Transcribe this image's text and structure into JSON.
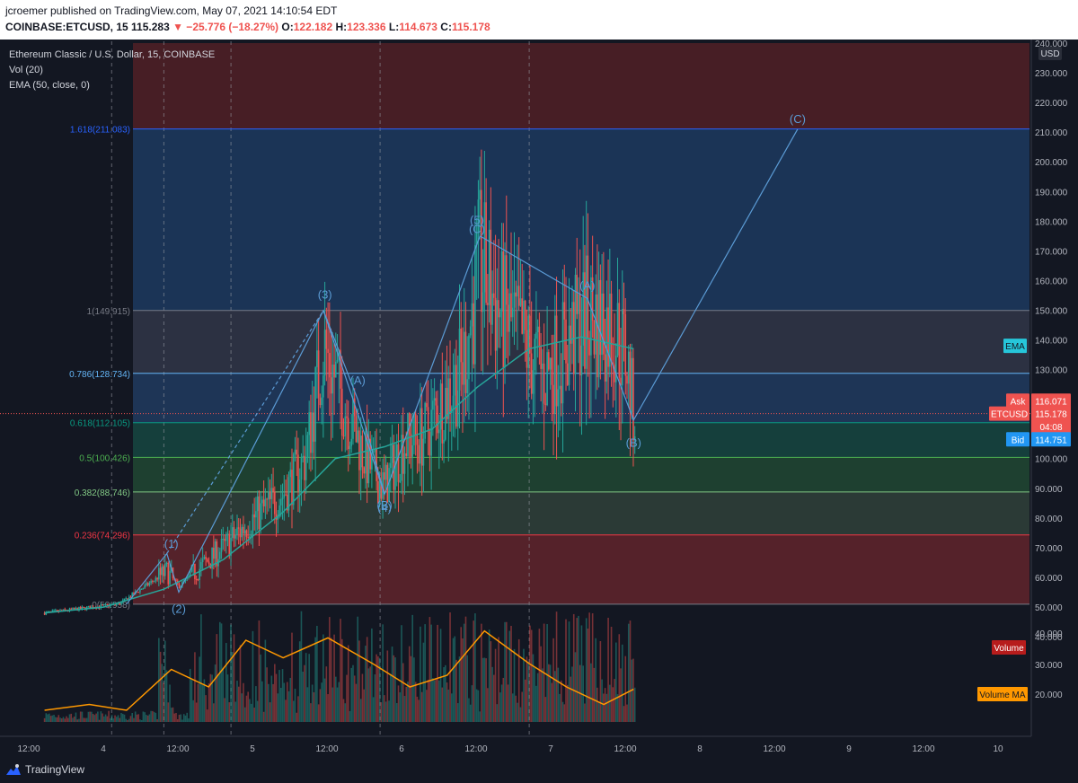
{
  "header": {
    "line1": "jcroemer published on TradingView.com, May 07, 2021 14:10:54 EDT",
    "symbol": "COINBASE:ETCUSD, 15",
    "price": "115.283",
    "change": "▼ −25.776 (−18.27%)",
    "o_label": "O:",
    "o": "122.182",
    "h_label": "H:",
    "h": "123.336",
    "l_label": "L:",
    "l": "114.673",
    "c_label": "C:",
    "c": "115.178"
  },
  "legend": {
    "title": "Ethereum Classic / U.S. Dollar, 15, COINBASE",
    "vol": "Vol (20)",
    "ema": "EMA (50, close, 0)"
  },
  "colors": {
    "background": "#131722",
    "up": "#26a69a",
    "down": "#ef5350",
    "ema": "#26a69a",
    "wave": "#5b9bd5",
    "volume_ma": "#ff9800"
  },
  "chart_data": {
    "type": "candlestick",
    "x_ticks": [
      "12:00",
      "4",
      "12:00",
      "5",
      "12:00",
      "6",
      "12:00",
      "7",
      "12:00",
      "8",
      "12:00",
      "9",
      "12:00",
      "10"
    ],
    "y_unit": "USD",
    "y_ticks": [
      "40.000",
      "50.000",
      "60.000",
      "70.000",
      "80.000",
      "90.000",
      "100.000",
      "110.000",
      "120.000",
      "130.000",
      "140.000",
      "150.000",
      "160.000",
      "170.000",
      "180.000",
      "190.000",
      "200.000",
      "210.000",
      "220.000",
      "230.000",
      "240.000"
    ],
    "y_range": [
      35,
      240
    ],
    "fib_levels": [
      {
        "ratio": 0,
        "price": 50.958,
        "label": "0(50.958)",
        "color": "#787b86"
      },
      {
        "ratio": 0.236,
        "price": 74.296,
        "label": "0.236(74.296)",
        "color": "#f23645"
      },
      {
        "ratio": 0.382,
        "price": 88.746,
        "label": "0.382(88.746)",
        "color": "#81c784"
      },
      {
        "ratio": 0.5,
        "price": 100.426,
        "label": "0.5(100.426)",
        "color": "#4caf50"
      },
      {
        "ratio": 0.618,
        "price": 112.105,
        "label": "0.618(112.105)",
        "color": "#089981"
      },
      {
        "ratio": 0.786,
        "price": 128.734,
        "label": "0.786(128.734)",
        "color": "#64b5f6"
      },
      {
        "ratio": 1,
        "price": 149.915,
        "label": "1(149.915)",
        "color": "#787b86"
      },
      {
        "ratio": 1.618,
        "price": 211.083,
        "label": "1.618(211.083)",
        "color": "#2962ff"
      }
    ],
    "wave_labels": [
      {
        "label": "(1)",
        "x": 3.45,
        "y": 70
      },
      {
        "label": "(2)",
        "x": 3.5,
        "y": 48
      },
      {
        "label": "(3)",
        "x": 4.48,
        "y": 154
      },
      {
        "label": "(A)",
        "x": 4.7,
        "y": 125
      },
      {
        "label": "(B)",
        "x": 4.88,
        "y": 83
      },
      {
        "label": "(4)",
        "x": 4.88,
        "y": 82
      },
      {
        "label": "(5)",
        "x": 5.5,
        "y": 179
      },
      {
        "label": "(C)",
        "x": 5.5,
        "y": 176
      },
      {
        "label": "(A)",
        "x": 6.24,
        "y": 157
      },
      {
        "label": "(B)",
        "x": 6.55,
        "y": 104
      },
      {
        "label": "(C)",
        "x": 7.65,
        "y": 213
      }
    ],
    "wave_path": [
      {
        "x": 3.15,
        "y": 51
      },
      {
        "x": 3.42,
        "y": 68
      },
      {
        "x": 3.5,
        "y": 55
      },
      {
        "x": 4.47,
        "y": 149.9
      },
      {
        "x": 4.88,
        "y": 88
      },
      {
        "x": 5.52,
        "y": 175
      }
    ],
    "abc_path": [
      {
        "x": 4.47,
        "y": 149.9
      },
      {
        "x": 4.7,
        "y": 120
      },
      {
        "x": 4.88,
        "y": 88
      }
    ],
    "corrective_path": [
      {
        "x": 5.52,
        "y": 175
      },
      {
        "x": 6.24,
        "y": 154
      },
      {
        "x": 6.55,
        "y": 113
      },
      {
        "x": 7.65,
        "y": 211
      }
    ],
    "dashed_projection": [
      {
        "x": 3.42,
        "y": 68
      },
      {
        "x": 4.47,
        "y": 149.9
      }
    ],
    "ema_series": [
      {
        "x": 2.6,
        "y": 48
      },
      {
        "x": 3.0,
        "y": 50
      },
      {
        "x": 3.4,
        "y": 56
      },
      {
        "x": 3.8,
        "y": 66
      },
      {
        "x": 4.2,
        "y": 82
      },
      {
        "x": 4.55,
        "y": 100
      },
      {
        "x": 4.88,
        "y": 104
      },
      {
        "x": 5.2,
        "y": 110
      },
      {
        "x": 5.5,
        "y": 124
      },
      {
        "x": 5.85,
        "y": 137
      },
      {
        "x": 6.2,
        "y": 141
      },
      {
        "x": 6.55,
        "y": 137
      }
    ],
    "volume_ma_series": [
      {
        "x": 2.6,
        "y": 0.1
      },
      {
        "x": 2.9,
        "y": 0.15
      },
      {
        "x": 3.15,
        "y": 0.1
      },
      {
        "x": 3.45,
        "y": 0.45
      },
      {
        "x": 3.7,
        "y": 0.3
      },
      {
        "x": 3.95,
        "y": 0.7
      },
      {
        "x": 4.2,
        "y": 0.55
      },
      {
        "x": 4.5,
        "y": 0.72
      },
      {
        "x": 4.8,
        "y": 0.5
      },
      {
        "x": 5.05,
        "y": 0.3
      },
      {
        "x": 5.3,
        "y": 0.4
      },
      {
        "x": 5.55,
        "y": 0.78
      },
      {
        "x": 5.85,
        "y": 0.5
      },
      {
        "x": 6.1,
        "y": 0.3
      },
      {
        "x": 6.35,
        "y": 0.15
      },
      {
        "x": 6.55,
        "y": 0.28
      }
    ],
    "current": {
      "ask_label": "Ask",
      "ask": "116.071",
      "symbol": "ETCUSD",
      "price": "115.178",
      "countdown": "04:08",
      "bid_label": "Bid",
      "bid": "114.751"
    },
    "tags": {
      "ema": "EMA",
      "volume": "Volume",
      "volume_ma": "Volume MA"
    },
    "volume_ticks": [
      "40.000",
      "30.000",
      "20.000"
    ]
  },
  "footer": {
    "brand": "TradingView"
  }
}
